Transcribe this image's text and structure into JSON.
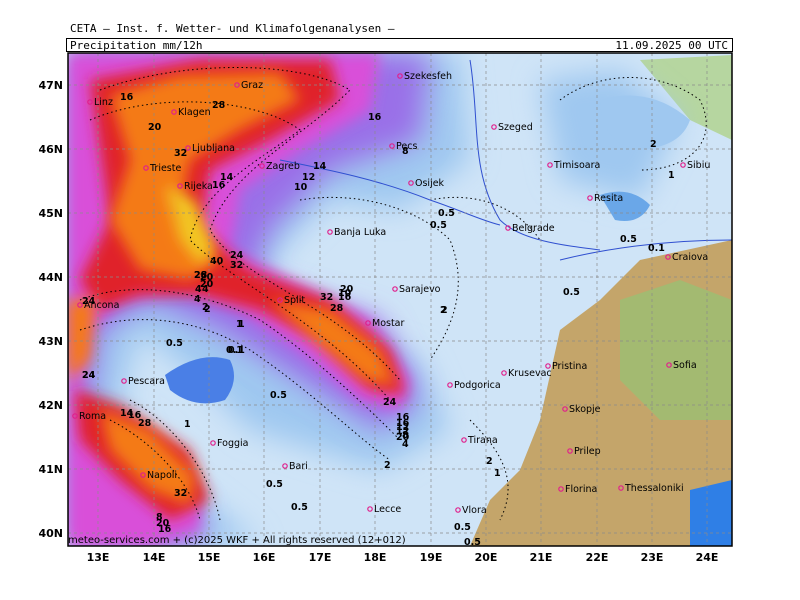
{
  "header": {
    "title": "CETA — Inst. f. Wetter- und Klimafolgenanalysen —",
    "variable": "Precipitation  mm/12h",
    "datetime": "11.09.2025 00 UTC"
  },
  "footer": {
    "credit": "meteo-services.com + (c)2025 WKF + All rights reserved",
    "run": "(12+012)"
  },
  "axes": {
    "lon_labels": [
      "13E",
      "14E",
      "15E",
      "16E",
      "17E",
      "18E",
      "19E",
      "20E",
      "21E",
      "22E",
      "23E",
      "24E"
    ],
    "lat_labels": [
      "47N",
      "46N",
      "45N",
      "44N",
      "43N",
      "42N",
      "41N",
      "40N"
    ]
  },
  "colors": {
    "land": "#c4a56a",
    "low": "#cfe4f7",
    "blue": "#9fc8f0",
    "blue_dark": "#6aa7e8",
    "violet": "#9a6fe8",
    "magenta": "#d94fd9",
    "red": "#e0202a",
    "orange": "#f47a18",
    "yellow": "#f2c620"
  },
  "cities": [
    {
      "name": "Szekesfeh"
    },
    {
      "name": "Graz"
    },
    {
      "name": "Linz"
    },
    {
      "name": "Klagen"
    },
    {
      "name": "Szeged"
    },
    {
      "name": "Pecs"
    },
    {
      "name": "Ljubljana"
    },
    {
      "name": "Timisoara"
    },
    {
      "name": "Sibiu"
    },
    {
      "name": "Zagreb"
    },
    {
      "name": "Trieste"
    },
    {
      "name": "Osijek"
    },
    {
      "name": "Rijeka"
    },
    {
      "name": "Resita"
    },
    {
      "name": "Banja Luka"
    },
    {
      "name": "Belgrade"
    },
    {
      "name": "Craiova"
    },
    {
      "name": "Sarajevo"
    },
    {
      "name": "Ancona"
    },
    {
      "name": "Split"
    },
    {
      "name": "Mostar"
    },
    {
      "name": "Krusevac"
    },
    {
      "name": "Pristina"
    },
    {
      "name": "Sofia"
    },
    {
      "name": "Pescara"
    },
    {
      "name": "Podgorica"
    },
    {
      "name": "Roma"
    },
    {
      "name": "Skopje"
    },
    {
      "name": "Foggia"
    },
    {
      "name": "Tirana"
    },
    {
      "name": "Prilep"
    },
    {
      "name": "Bari"
    },
    {
      "name": "Napoli"
    },
    {
      "name": "Florina"
    },
    {
      "name": "Thessaloniki"
    },
    {
      "name": "Vlora"
    },
    {
      "name": "Lecce"
    }
  ],
  "contour_labels": [
    "16",
    "28",
    "20",
    "32",
    "16",
    "14",
    "12",
    "10",
    "14",
    "16",
    "8",
    "24",
    "32",
    "28",
    "24",
    "40",
    "28",
    "32",
    "20",
    "16",
    "2",
    "4",
    "1",
    "0.5",
    "0.1",
    "24",
    "14",
    "28",
    "16",
    "12",
    "16",
    "20",
    "10",
    "20",
    "28",
    "24",
    "16",
    "12",
    "20",
    "8",
    "4",
    "2",
    "0.5",
    "0.5",
    "2",
    "0.5",
    "0.1",
    "1",
    "0.5",
    "0.1",
    "0.5",
    "1",
    "2",
    "4",
    "0.5",
    "2",
    "1",
    "24",
    "32",
    "20",
    "16",
    "8",
    "4",
    "2",
    "0.5",
    "0.5",
    "1",
    "0.5",
    "2"
  ]
}
